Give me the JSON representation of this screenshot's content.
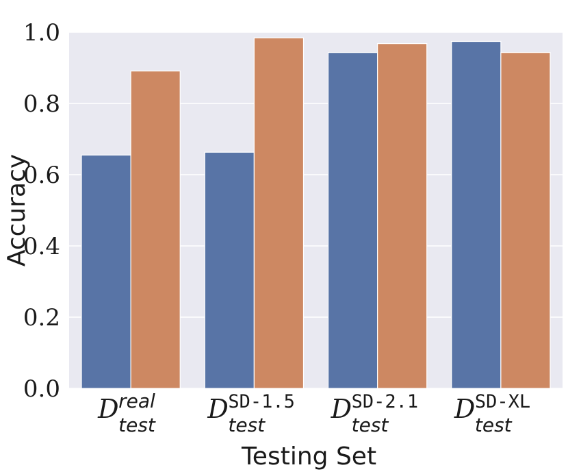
{
  "chart_data": {
    "type": "bar",
    "categories": [
      {
        "main": "D",
        "sub": "test",
        "sup": "real",
        "sup_style": "italic"
      },
      {
        "main": "D",
        "sub": "test",
        "sup": "SD-1.5",
        "sup_style": "mono"
      },
      {
        "main": "D",
        "sub": "test",
        "sup": "SD-2.1",
        "sup_style": "mono"
      },
      {
        "main": "D",
        "sub": "test",
        "sup": "SD-XL",
        "sup_style": "mono"
      }
    ],
    "series": [
      {
        "color": "#5874a6",
        "values": [
          0.655,
          0.663,
          0.943,
          0.974
        ]
      },
      {
        "color": "#cd8862",
        "values": [
          0.891,
          0.984,
          0.968,
          0.943
        ]
      }
    ],
    "xlabel": "Testing Set",
    "ylabel": "Accuracy",
    "ylim": [
      0,
      1.0
    ],
    "yticks": [
      "0.0",
      "0.2",
      "0.4",
      "0.6",
      "0.8",
      "1.0"
    ],
    "ytick_values": [
      0,
      0.2,
      0.4,
      0.6,
      0.8,
      1.0
    ],
    "grid": true,
    "legend": "none",
    "background": "#e9e9f1",
    "gridline_color": "#ffffff"
  }
}
